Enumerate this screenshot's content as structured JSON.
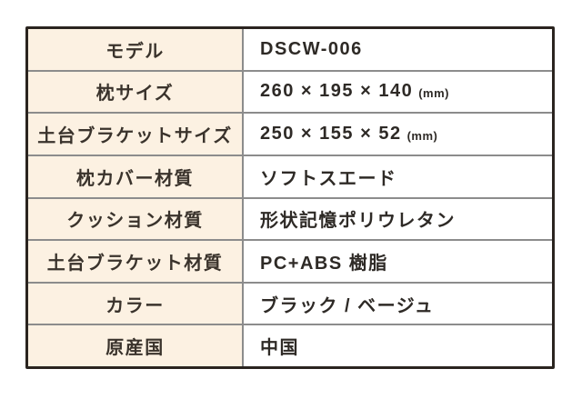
{
  "table": {
    "title": "product-specification-table",
    "colors": {
      "outer_border": "#2a241f",
      "grid_line": "#8c8c8c",
      "label_bg": "#fcf1e2",
      "value_bg": "#ffffff",
      "label_text": "#3a332c",
      "value_text": "#2e2a26"
    },
    "rows": [
      {
        "label": "モデル",
        "value": "DSCW-006",
        "unit": ""
      },
      {
        "label": "枕サイズ",
        "value": "260 × 195 × 140",
        "unit": "(mm)"
      },
      {
        "label": "土台ブラケットサイズ",
        "value": "250 × 155 × 52",
        "unit": "(mm)"
      },
      {
        "label": "枕カバー材質",
        "value": "ソフトスエード",
        "unit": ""
      },
      {
        "label": "クッション材質",
        "value": "形状記憶ポリウレタン",
        "unit": ""
      },
      {
        "label": "土台ブラケット材質",
        "value": "PC+ABS 樹脂",
        "unit": ""
      },
      {
        "label": "カラー",
        "value": "ブラック / ベージュ",
        "unit": ""
      },
      {
        "label": "原産国",
        "value": "中国",
        "unit": ""
      }
    ]
  }
}
